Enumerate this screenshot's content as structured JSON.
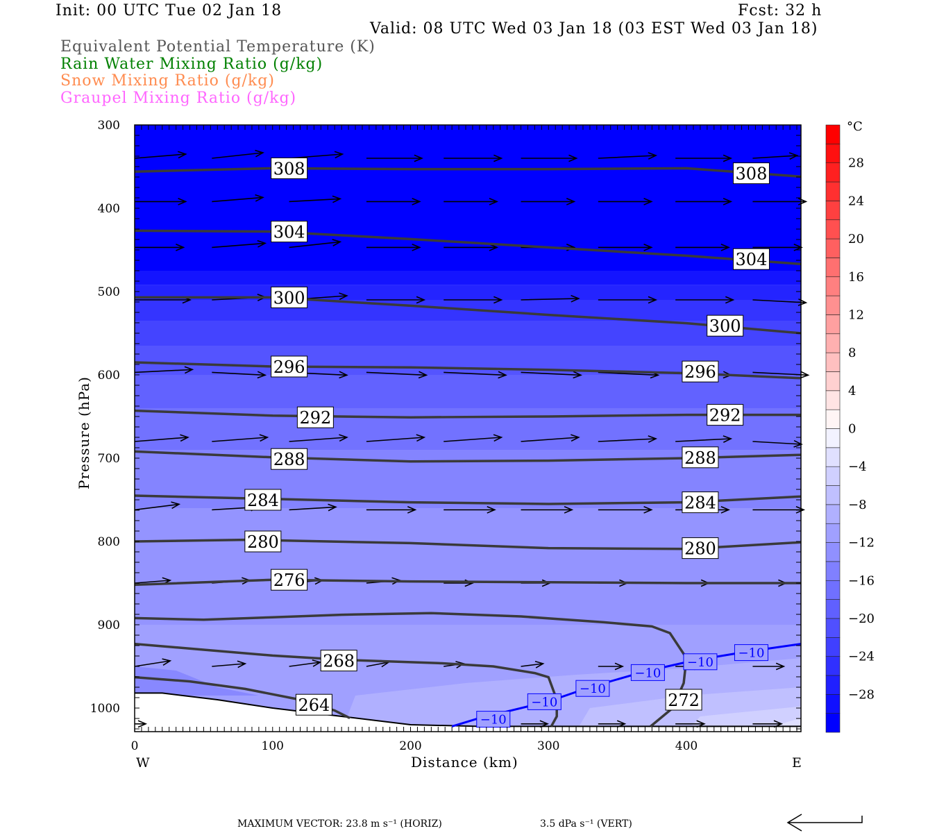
{
  "header": {
    "init": "Init: 00 UTC Tue 02 Jan 18",
    "fcst": "Fcst:   32 h",
    "valid": "Valid: 08 UTC Wed 03 Jan 18 (03 EST Wed 03 Jan 18)",
    "fields": [
      {
        "label": "Equivalent Potential Temperature (K)",
        "color": "#555555"
      },
      {
        "label": "Rain Water Mixing Ratio (g/kg)",
        "color": "#008000"
      },
      {
        "label": "Snow Mixing Ratio (g/kg)",
        "color": "#ff8c50"
      },
      {
        "label": "Graupel Mixing Ratio (g/kg)",
        "color": "#ff66ff"
      }
    ]
  },
  "footer": {
    "max_vector": "MAXIMUM VECTOR:  23.8 m s⁻¹ (HORIZ)",
    "vert": "3.5 dPa s⁻¹ (VERT)"
  },
  "chart_data": {
    "type": "cross-section",
    "xlabel": "Distance (km)",
    "ylabel": "Pressure (hPa)",
    "xlim": [
      0,
      483
    ],
    "ylim": [
      1028,
      300
    ],
    "xticks": [
      "0",
      "100",
      "200",
      "300",
      "400"
    ],
    "yticks": [
      "300",
      "400",
      "500",
      "600",
      "700",
      "800",
      "900",
      "1000"
    ],
    "x_end_labels": {
      "left": "W",
      "right": "E"
    },
    "colorbar": {
      "unit": "°C",
      "min": -32,
      "max": 32,
      "step": 2,
      "labels": [
        "28",
        "24",
        "20",
        "16",
        "12",
        "8",
        "4",
        "0",
        "−4",
        "−8",
        "−12",
        "−16",
        "−20",
        "−24",
        "−28"
      ],
      "colors_bottom_to_top": [
        "#0000ff",
        "#1010ff",
        "#2020ff",
        "#3030ff",
        "#4040ff",
        "#5050ff",
        "#6060ff",
        "#7070ff",
        "#8080ff",
        "#9090ff",
        "#a0a0ff",
        "#b0b0ff",
        "#c0c0ff",
        "#d0d0ff",
        "#e0e0ff",
        "#f2f2ff",
        "#fff5f5",
        "#ffe4e4",
        "#ffd0d0",
        "#ffc0c0",
        "#ffb0b0",
        "#ffa0a0",
        "#ff9090",
        "#ff8080",
        "#ff7070",
        "#ff6060",
        "#ff5050",
        "#ff4040",
        "#ff3030",
        "#ff2020",
        "#ff1010",
        "#ff0000"
      ]
    },
    "temperature_bands": [
      {
        "p": [
          300,
          475
        ],
        "color": "#0000ff"
      },
      {
        "p": [
          475,
          492
        ],
        "color": "#1414ff"
      },
      {
        "p": [
          492,
          510
        ],
        "color": "#2424ff"
      },
      {
        "p": [
          510,
          535
        ],
        "color": "#3434ff"
      },
      {
        "p": [
          535,
          565
        ],
        "color": "#4444ff"
      },
      {
        "p": [
          565,
          600
        ],
        "color": "#5454ff"
      },
      {
        "p": [
          600,
          640
        ],
        "color": "#6262ff"
      },
      {
        "p": [
          640,
          690
        ],
        "color": "#7272ff"
      },
      {
        "p": [
          690,
          760
        ],
        "color": "#8484ff"
      },
      {
        "p": [
          760,
          900
        ],
        "color": "#9494ff"
      },
      {
        "p": [
          900,
          1028
        ],
        "color": "#a0a0ff"
      }
    ],
    "temperature_patches": [
      {
        "color": "#b0b0ff",
        "points": [
          [
            150,
            1028
          ],
          [
            160,
            985
          ],
          [
            240,
            970
          ],
          [
            320,
            960
          ],
          [
            400,
            952
          ],
          [
            483,
            940
          ],
          [
            483,
            1028
          ]
        ]
      },
      {
        "color": "#c0c0ff",
        "points": [
          [
            320,
            1028
          ],
          [
            330,
            1000
          ],
          [
            400,
            985
          ],
          [
            483,
            975
          ],
          [
            483,
            1028
          ]
        ]
      },
      {
        "color": "#d0d0ff",
        "points": [
          [
            400,
            1028
          ],
          [
            410,
            1010
          ],
          [
            483,
            998
          ],
          [
            483,
            1028
          ]
        ]
      },
      {
        "color": "#e0e0ff",
        "points": [
          [
            450,
            1028
          ],
          [
            483,
            1012
          ],
          [
            483,
            1028
          ]
        ]
      },
      {
        "color": "#8888ff",
        "points": [
          [
            0,
            950
          ],
          [
            30,
            955
          ],
          [
            60,
            975
          ],
          [
            90,
            985
          ],
          [
            0,
            985
          ]
        ]
      }
    ],
    "ground": [
      [
        0,
        982
      ],
      [
        20,
        982
      ],
      [
        60,
        990
      ],
      [
        100,
        1000
      ],
      [
        150,
        1010
      ],
      [
        200,
        1020
      ],
      [
        250,
        1022
      ],
      [
        483,
        1022
      ]
    ],
    "theta_e_contours": [
      {
        "value": "308",
        "points": [
          [
            0,
            356
          ],
          [
            100,
            352
          ],
          [
            200,
            353
          ],
          [
            300,
            353
          ],
          [
            400,
            352
          ],
          [
            483,
            362
          ]
        ],
        "labels": [
          [
            112,
            352
          ],
          [
            447,
            358
          ]
        ]
      },
      {
        "value": "304",
        "points": [
          [
            0,
            427
          ],
          [
            100,
            428
          ],
          [
            200,
            437
          ],
          [
            300,
            447
          ],
          [
            400,
            457
          ],
          [
            483,
            467
          ]
        ],
        "labels": [
          [
            112,
            428
          ],
          [
            447,
            461
          ]
        ]
      },
      {
        "value": "300",
        "points": [
          [
            0,
            507
          ],
          [
            100,
            507
          ],
          [
            200,
            517
          ],
          [
            300,
            528
          ],
          [
            400,
            538
          ],
          [
            483,
            550
          ]
        ],
        "labels": [
          [
            112,
            507
          ],
          [
            428,
            541
          ]
        ]
      },
      {
        "value": "296",
        "points": [
          [
            0,
            585
          ],
          [
            100,
            590
          ],
          [
            200,
            591
          ],
          [
            300,
            594
          ],
          [
            400,
            598
          ],
          [
            483,
            604
          ]
        ],
        "labels": [
          [
            112,
            590
          ],
          [
            410,
            596
          ]
        ]
      },
      {
        "value": "292",
        "points": [
          [
            0,
            643
          ],
          [
            100,
            649
          ],
          [
            200,
            651
          ],
          [
            300,
            650
          ],
          [
            400,
            648
          ],
          [
            483,
            648
          ]
        ],
        "labels": [
          [
            131,
            651
          ],
          [
            428,
            648
          ]
        ]
      },
      {
        "value": "288",
        "points": [
          [
            0,
            692
          ],
          [
            100,
            699
          ],
          [
            200,
            704
          ],
          [
            300,
            703
          ],
          [
            400,
            700
          ],
          [
            483,
            696
          ]
        ],
        "labels": [
          [
            112,
            701
          ],
          [
            410,
            699
          ]
        ]
      },
      {
        "value": "284",
        "points": [
          [
            0,
            745
          ],
          [
            100,
            749
          ],
          [
            200,
            753
          ],
          [
            300,
            755
          ],
          [
            400,
            753
          ],
          [
            483,
            746
          ]
        ],
        "labels": [
          [
            93,
            750
          ],
          [
            410,
            753
          ]
        ]
      },
      {
        "value": "280",
        "points": [
          [
            0,
            800
          ],
          [
            80,
            798
          ],
          [
            200,
            802
          ],
          [
            300,
            808
          ],
          [
            400,
            809
          ],
          [
            483,
            801
          ]
        ],
        "labels": [
          [
            93,
            800
          ],
          [
            410,
            808
          ]
        ]
      },
      {
        "value": "276",
        "points": [
          [
            0,
            852
          ],
          [
            100,
            846
          ],
          [
            200,
            848
          ],
          [
            300,
            849
          ],
          [
            400,
            850
          ],
          [
            483,
            850
          ]
        ],
        "labels": [
          [
            112,
            846
          ]
        ]
      },
      {
        "value": "272",
        "points": [
          [
            0,
            892
          ],
          [
            50,
            894
          ],
          [
            100,
            891
          ],
          [
            150,
            888
          ],
          [
            215,
            886
          ],
          [
            280,
            890
          ],
          [
            340,
            897
          ],
          [
            375,
            902
          ],
          [
            388,
            910
          ],
          [
            400,
            940
          ],
          [
            398,
            970
          ],
          [
            390,
            1000
          ],
          [
            374,
            1022
          ]
        ],
        "labels": [
          [
            398,
            990
          ]
        ]
      },
      {
        "value": "268",
        "points": [
          [
            0,
            923
          ],
          [
            50,
            930
          ],
          [
            100,
            937
          ],
          [
            150,
            942
          ],
          [
            220,
            946
          ],
          [
            260,
            950
          ],
          [
            290,
            958
          ],
          [
            300,
            963
          ],
          [
            306,
            990
          ],
          [
            306,
            1010
          ],
          [
            302,
            1022
          ]
        ],
        "labels": [
          [
            148,
            943
          ]
        ]
      },
      {
        "value": "264",
        "points": [
          [
            0,
            963
          ],
          [
            40,
            968
          ],
          [
            80,
            977
          ],
          [
            120,
            990
          ],
          [
            145,
            1003
          ],
          [
            156,
            1012
          ]
        ],
        "labels": [
          [
            130,
            996
          ]
        ]
      }
    ],
    "isotherm_minus10": {
      "value": "−10",
      "color": "#0000ff",
      "points": [
        [
          230,
          1022
        ],
        [
          248,
          1013
        ],
        [
          300,
          992
        ],
        [
          330,
          975
        ],
        [
          370,
          956
        ],
        [
          405,
          943
        ],
        [
          445,
          932
        ],
        [
          483,
          923
        ]
      ],
      "labels": [
        [
          260,
          1013
        ],
        [
          297,
          992
        ],
        [
          332,
          976
        ],
        [
          372,
          957
        ],
        [
          410,
          944
        ],
        [
          447,
          933
        ]
      ]
    },
    "wind_vectors": [
      {
        "p": 340,
        "u": [
          23,
          23,
          24,
          25,
          26,
          25,
          26,
          25,
          20
        ],
        "w": [
          -3,
          -4,
          -3,
          0,
          0,
          0,
          -2,
          0,
          -2
        ]
      },
      {
        "p": 392,
        "u": [
          23,
          23,
          23,
          24,
          24,
          24,
          24,
          25,
          24
        ],
        "w": [
          0,
          -3,
          -2,
          0,
          0,
          0,
          0,
          0,
          0
        ]
      },
      {
        "p": 447,
        "u": [
          22,
          24,
          23,
          24,
          24,
          24,
          24,
          24,
          22
        ],
        "w": [
          0,
          -3,
          -4,
          0,
          0,
          0,
          0,
          0,
          0
        ]
      },
      {
        "p": 510,
        "u": [
          25,
          24,
          26,
          26,
          26,
          26,
          26,
          26,
          24
        ],
        "w": [
          0,
          -2,
          -3,
          0,
          0,
          -1,
          0,
          0,
          2
        ]
      },
      {
        "p": 597,
        "u": [
          26,
          24,
          26,
          27,
          28,
          27,
          27,
          25,
          25
        ],
        "w": [
          -2,
          2,
          2,
          2,
          2,
          2,
          2,
          2,
          2
        ]
      },
      {
        "p": 680,
        "u": [
          24,
          25,
          26,
          26,
          26,
          26,
          26,
          25,
          22
        ],
        "w": [
          -3,
          -3,
          -3,
          -3,
          -3,
          -3,
          -2,
          -2,
          2
        ]
      },
      {
        "p": 762,
        "u": [
          20,
          21,
          21,
          22,
          23,
          23,
          24,
          24,
          23
        ],
        "w": [
          -4,
          -2,
          -2,
          0,
          0,
          0,
          0,
          0,
          0
        ]
      },
      {
        "p": 850,
        "u": [
          16,
          17,
          15,
          15,
          13,
          13,
          13,
          15,
          15
        ],
        "w": [
          -2,
          -2,
          -2,
          -2,
          0,
          0,
          0,
          0,
          0
        ]
      },
      {
        "p": 950,
        "u": [
          16,
          15,
          14,
          10,
          9,
          10,
          11,
          12,
          14
        ],
        "w": [
          -4,
          -2,
          -3,
          -3,
          -2,
          -2,
          0,
          0,
          0
        ]
      },
      {
        "p": 1019,
        "u": [
          5,
          0,
          0,
          0,
          0,
          12,
          12,
          13,
          13
        ],
        "w": [
          0,
          0,
          0,
          0,
          0,
          0,
          0,
          0,
          0
        ]
      }
    ]
  }
}
